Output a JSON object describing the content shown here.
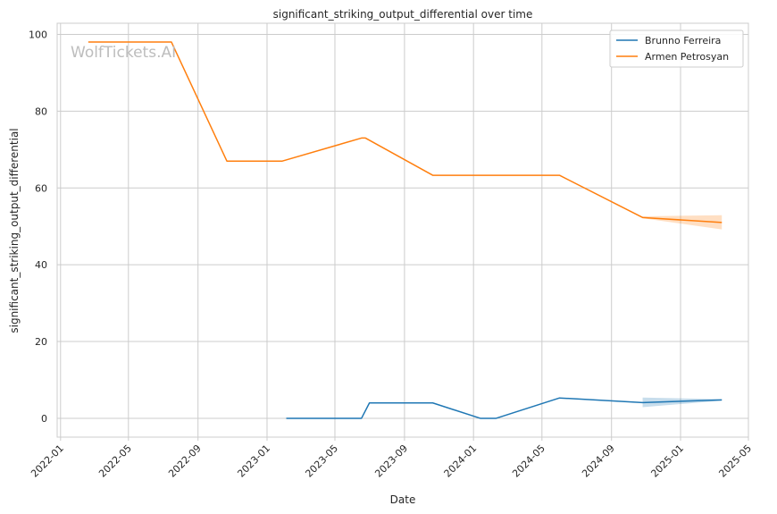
{
  "chart_data": {
    "type": "line",
    "title": "significant_striking_output_differential over time",
    "xlabel": "Date",
    "ylabel": "significant_striking_output_differential",
    "watermark": "WolfTickets.AI",
    "x_ticks": [
      "2022-01",
      "2022-05",
      "2022-09",
      "2023-01",
      "2023-05",
      "2023-09",
      "2024-01",
      "2024-05",
      "2024-09",
      "2025-01",
      "2025-05"
    ],
    "x_range": [
      "2021-12-26",
      "2025-05-01"
    ],
    "y_ticks": [
      0,
      20,
      40,
      60,
      80,
      100
    ],
    "ylim": [
      -4.9,
      102.9
    ],
    "grid": true,
    "legend_position": "top-right",
    "series": [
      {
        "name": "Brunno Ferreira",
        "color": "#1f77b4",
        "points": [
          {
            "x": "2023-02-04",
            "y": 0
          },
          {
            "x": "2023-06-17",
            "y": 0
          },
          {
            "x": "2023-07-01",
            "y": 4
          },
          {
            "x": "2023-10-21",
            "y": 4
          },
          {
            "x": "2024-01-13",
            "y": 0
          },
          {
            "x": "2024-02-10",
            "y": 0
          },
          {
            "x": "2024-06-01",
            "y": 5.3
          },
          {
            "x": "2024-10-26",
            "y": 4.1
          },
          {
            "x": "2025-03-15",
            "y": 4.8
          }
        ],
        "band": [
          {
            "x": "2024-10-26",
            "low": 2.9,
            "high": 5.4
          },
          {
            "x": "2025-03-15",
            "low": 4.6,
            "high": 5.0
          }
        ]
      },
      {
        "name": "Armen Petrosyan",
        "color": "#ff7f0e",
        "points": [
          {
            "x": "2022-02-19",
            "y": 98
          },
          {
            "x": "2022-07-16",
            "y": 98
          },
          {
            "x": "2022-10-22",
            "y": 67
          },
          {
            "x": "2023-01-28",
            "y": 67
          },
          {
            "x": "2023-06-17",
            "y": 73
          },
          {
            "x": "2023-06-24",
            "y": 73
          },
          {
            "x": "2023-10-21",
            "y": 63.3
          },
          {
            "x": "2024-06-01",
            "y": 63.3
          },
          {
            "x": "2024-10-26",
            "y": 52.3
          },
          {
            "x": "2025-03-15",
            "y": 51
          }
        ],
        "band": [
          {
            "x": "2024-10-26",
            "low": 52.1,
            "high": 52.6
          },
          {
            "x": "2025-03-15",
            "low": 49.2,
            "high": 52.9
          }
        ]
      }
    ]
  }
}
